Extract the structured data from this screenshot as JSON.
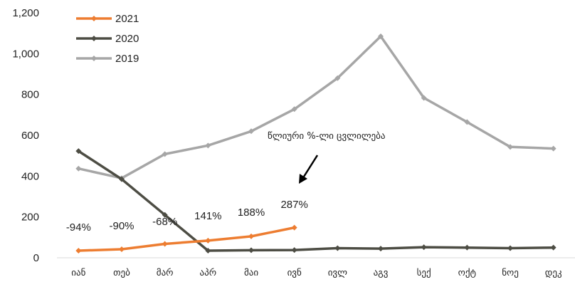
{
  "chart_data": {
    "type": "line",
    "title": "",
    "xlabel": "",
    "ylabel": "",
    "categories": [
      "იან",
      "თებ",
      "მარ",
      "აპრ",
      "მაი",
      "ივნ",
      "ივლ",
      "აგვ",
      "სექ",
      "ოქტ",
      "ნოე",
      "დეკ"
    ],
    "ylim": [
      0,
      1200
    ],
    "yticks": [
      "0",
      "200",
      "400",
      "600",
      "800",
      "1,000",
      "1,200"
    ],
    "ytick_values": [
      0,
      200,
      400,
      600,
      800,
      1000,
      1200
    ],
    "grid": false,
    "legend_position": "top-left",
    "series": [
      {
        "name": "2021",
        "color": "#ED7D31",
        "values": [
          35,
          42,
          68,
          84,
          105,
          148,
          null,
          null,
          null,
          null,
          null,
          null
        ]
      },
      {
        "name": "2020",
        "color": "#4D4D44",
        "values": [
          523,
          385,
          210,
          35,
          37,
          38,
          47,
          45,
          52,
          50,
          47,
          50
        ]
      },
      {
        "name": "2019",
        "color": "#A6A6A6",
        "values": [
          437,
          390,
          508,
          550,
          620,
          728,
          880,
          1085,
          783,
          665,
          543,
          535
        ]
      }
    ],
    "data_labels": [
      {
        "category": "იან",
        "text": "-94%"
      },
      {
        "category": "თებ",
        "text": "-90%"
      },
      {
        "category": "მარ",
        "text": "-68%"
      },
      {
        "category": "აპრ",
        "text": "141%"
      },
      {
        "category": "მაი",
        "text": "188%"
      },
      {
        "category": "ივნ",
        "text": "287%"
      }
    ],
    "annotation": "წლიური %-ლი ცვლილება"
  }
}
